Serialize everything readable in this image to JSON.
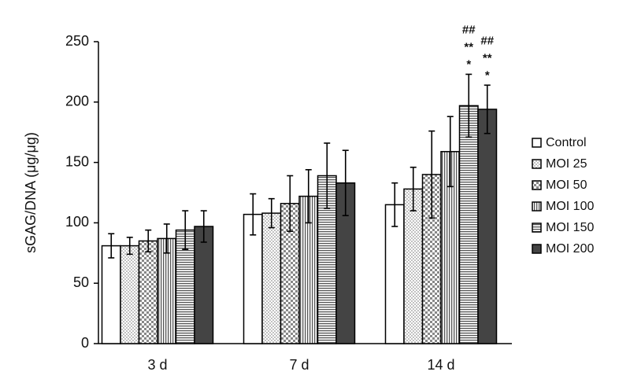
{
  "chart_data": {
    "type": "bar",
    "y_label": "sGAG/DNA (μg/μg)",
    "categories": [
      "3 d",
      "7 d",
      "14 d"
    ],
    "series": [
      {
        "name": "Control",
        "color": "#ffffff",
        "pattern": "none",
        "values": [
          81,
          107,
          115
        ],
        "errors": [
          10,
          17,
          18
        ]
      },
      {
        "name": "MOI 25",
        "color": "#ffffff",
        "pattern": "dots",
        "values": [
          81,
          108,
          128
        ],
        "errors": [
          7,
          12,
          18
        ]
      },
      {
        "name": "MOI 50",
        "color": "#ffffff",
        "pattern": "checker",
        "values": [
          85,
          116,
          140
        ],
        "errors": [
          9,
          23,
          36
        ]
      },
      {
        "name": "MOI 100",
        "color": "#ffffff",
        "pattern": "vertical",
        "values": [
          87,
          122,
          159
        ],
        "errors": [
          12,
          22,
          29
        ]
      },
      {
        "name": "MOI 150",
        "color": "#ffffff",
        "pattern": "horizontal",
        "values": [
          94,
          139,
          197
        ],
        "errors": [
          16,
          27,
          26
        ]
      },
      {
        "name": "MOI 200",
        "color": "#444444",
        "pattern": "solid",
        "values": [
          97,
          133,
          194
        ],
        "errors": [
          13,
          27,
          20
        ]
      }
    ],
    "annotations": [
      {
        "series": 4,
        "category": 2,
        "lines": [
          "##",
          "**",
          "*"
        ]
      },
      {
        "series": 5,
        "category": 2,
        "lines": [
          "##",
          "**",
          "*"
        ]
      }
    ],
    "ylim": [
      0,
      250
    ],
    "yticks": [
      0,
      50,
      100,
      150,
      200,
      250
    ],
    "grid": false,
    "legend": "right"
  }
}
